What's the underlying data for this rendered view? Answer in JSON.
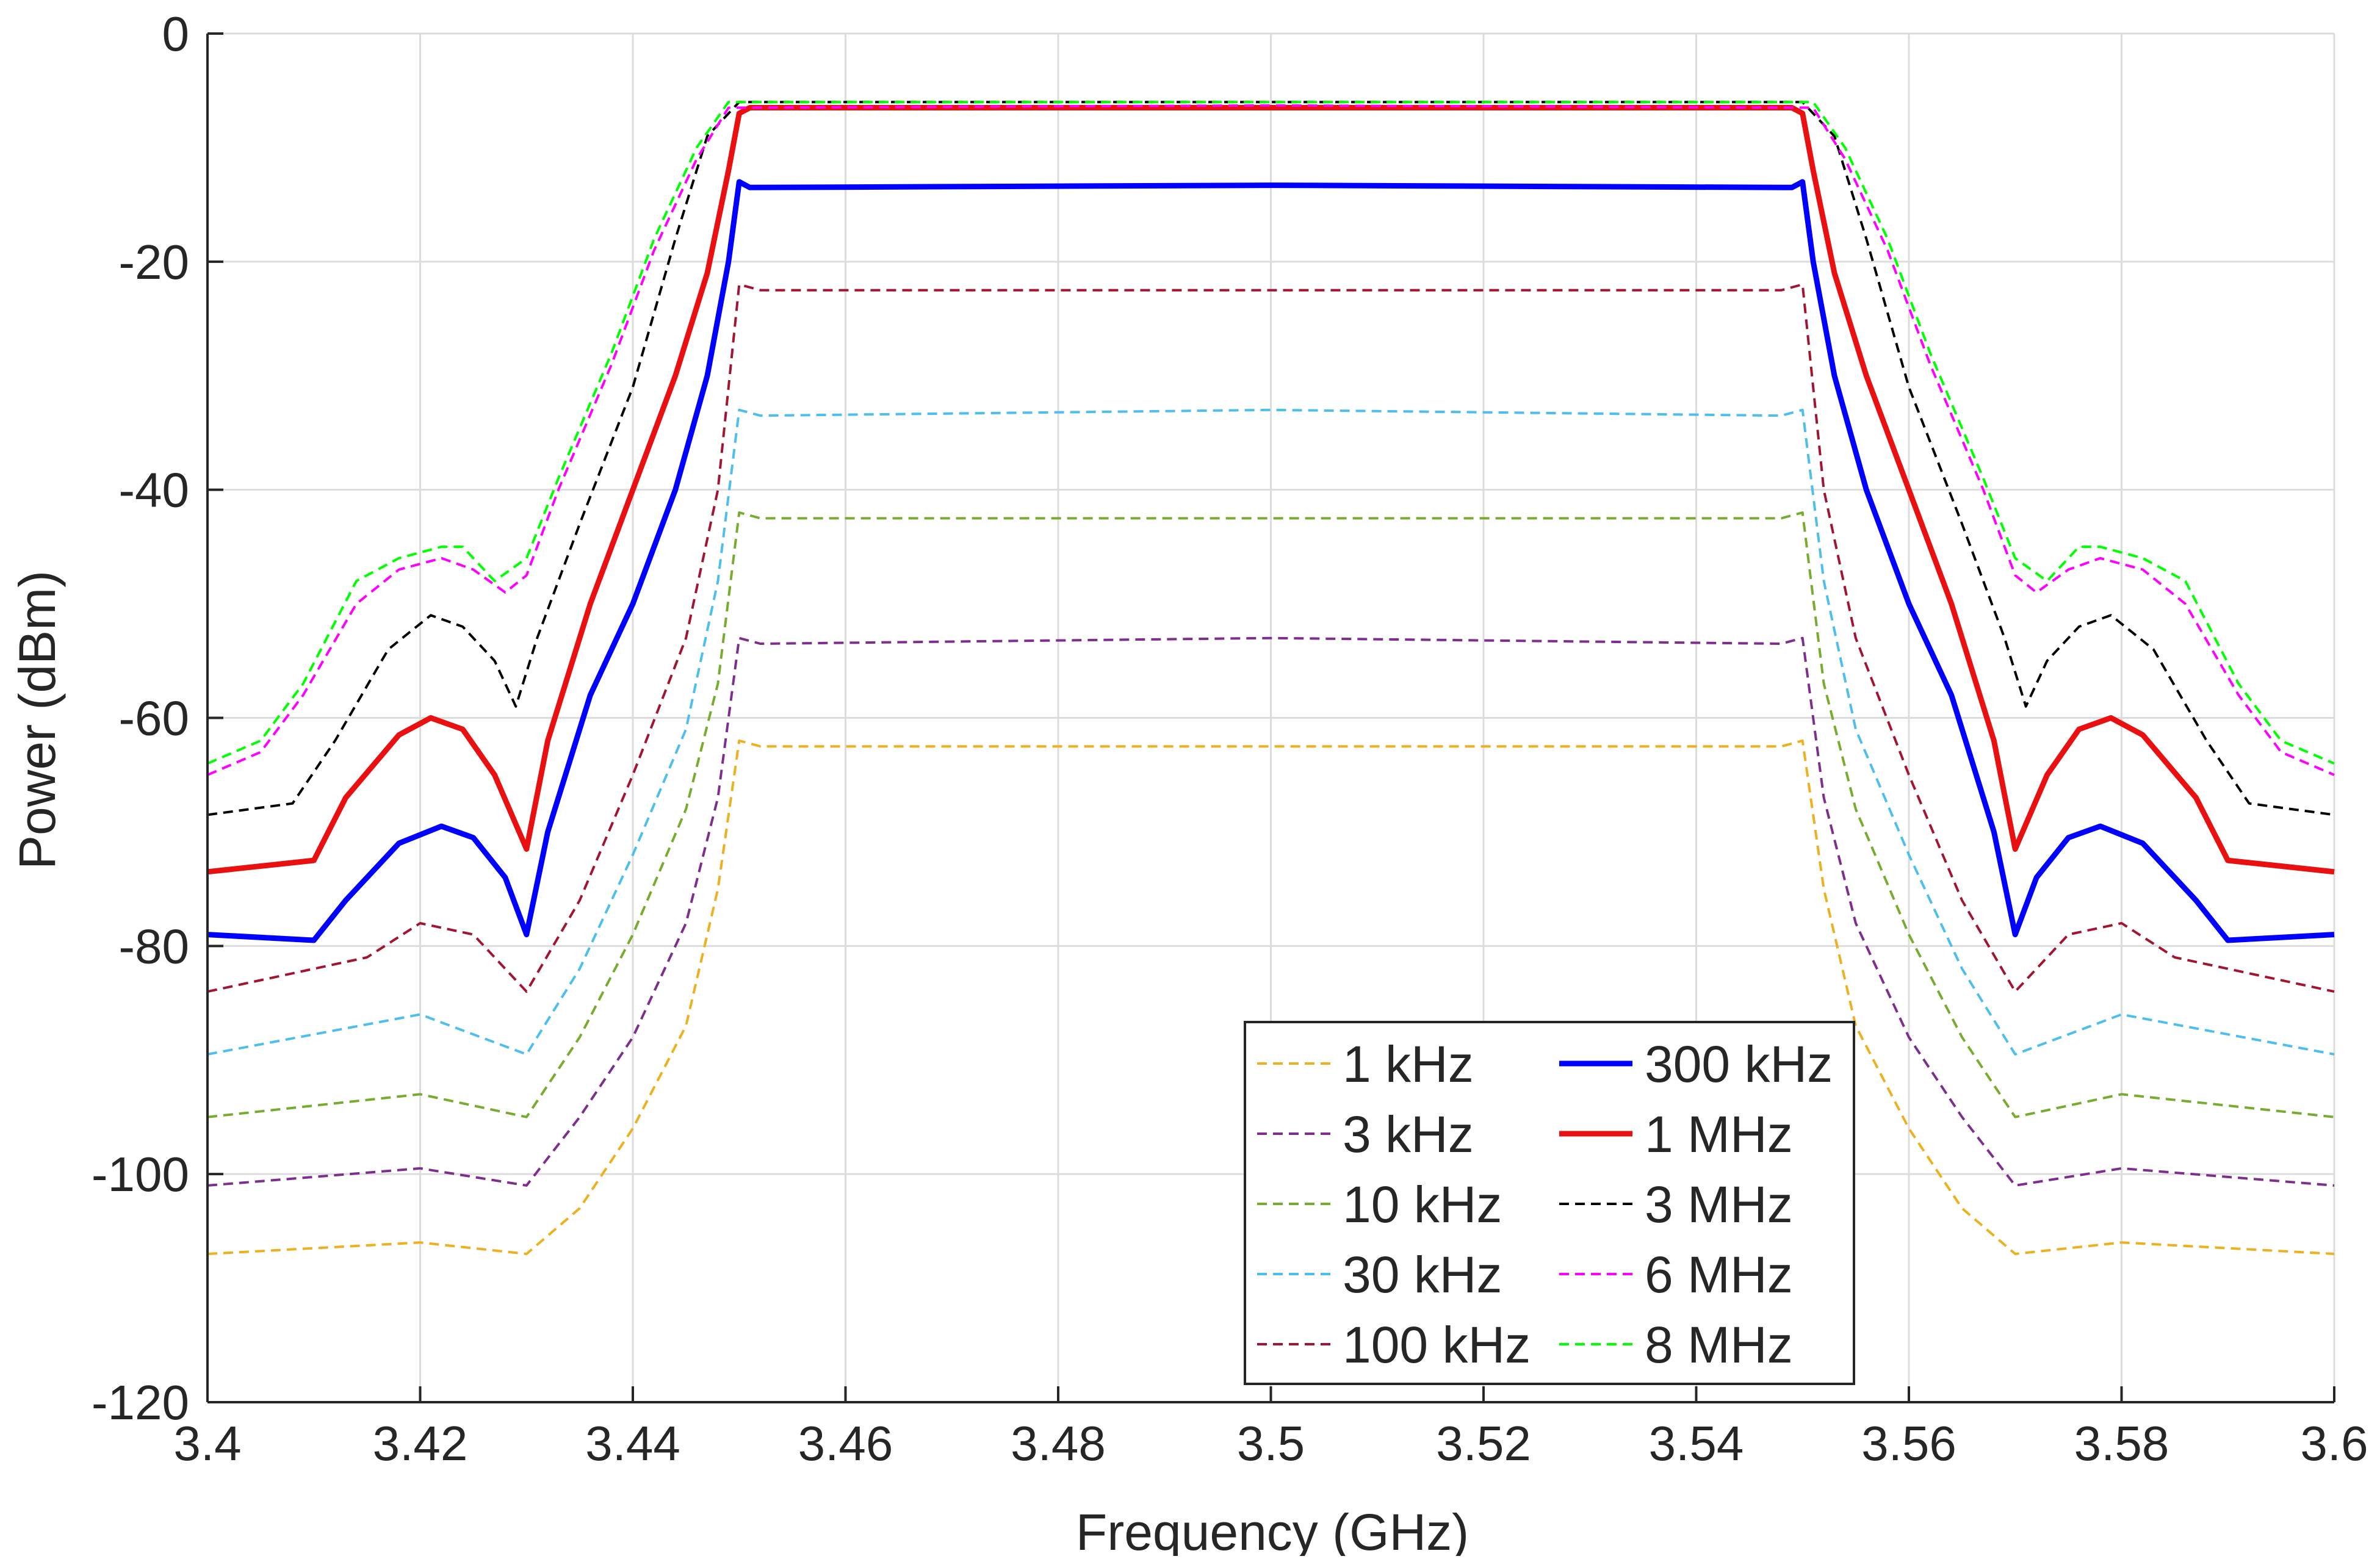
{
  "chart_data": {
    "type": "line",
    "title": "",
    "xlabel": "Frequency (GHz)",
    "ylabel": "Power (dBm)",
    "xlim": [
      3.4,
      3.6
    ],
    "ylim": [
      -120,
      0
    ],
    "grid": true,
    "legend_position": "bottom-center",
    "legend_columns": 2,
    "x_ticks": [
      3.4,
      3.42,
      3.44,
      3.46,
      3.48,
      3.5,
      3.52,
      3.54,
      3.56,
      3.58,
      3.6
    ],
    "x_tick_labels": [
      "3.4",
      "3.42",
      "3.44",
      "3.46",
      "3.48",
      "3.5",
      "3.52",
      "3.54",
      "3.56",
      "3.58",
      "3.6"
    ],
    "y_ticks": [
      0,
      -20,
      -40,
      -60,
      -80,
      -100,
      -120
    ],
    "y_tick_labels": [
      "0",
      "-20",
      "-40",
      "-60",
      "-80",
      "-100",
      "-120"
    ],
    "series": [
      {
        "name": "1 kHz",
        "color": "#EDB120",
        "style": "dashed",
        "width": "thin",
        "x": [
          3.4,
          3.42,
          3.43,
          3.435,
          3.44,
          3.445,
          3.448,
          3.45,
          3.452,
          3.5,
          3.548,
          3.55,
          3.552,
          3.555,
          3.56,
          3.565,
          3.57,
          3.58,
          3.6
        ],
        "y": [
          -107,
          -106,
          -107,
          -103,
          -96,
          -87,
          -75,
          -62,
          -62.5,
          -62.5,
          -62.5,
          -62,
          -75,
          -87,
          -96,
          -103,
          -107,
          -106,
          -107
        ]
      },
      {
        "name": "3 kHz",
        "color": "#7E2F8E",
        "style": "dashed",
        "width": "thin",
        "x": [
          3.4,
          3.42,
          3.43,
          3.435,
          3.44,
          3.445,
          3.448,
          3.45,
          3.452,
          3.5,
          3.548,
          3.55,
          3.552,
          3.555,
          3.56,
          3.565,
          3.57,
          3.58,
          3.6
        ],
        "y": [
          -101,
          -99.5,
          -101,
          -95,
          -88,
          -78,
          -67,
          -53,
          -53.5,
          -53,
          -53.5,
          -53,
          -67,
          -78,
          -88,
          -95,
          -101,
          -99.5,
          -101
        ]
      },
      {
        "name": "10 kHz",
        "color": "#77AC30",
        "style": "dashed",
        "width": "thin",
        "x": [
          3.4,
          3.42,
          3.43,
          3.435,
          3.44,
          3.445,
          3.448,
          3.45,
          3.452,
          3.5,
          3.548,
          3.55,
          3.552,
          3.555,
          3.56,
          3.565,
          3.57,
          3.58,
          3.6
        ],
        "y": [
          -95,
          -93,
          -95,
          -88,
          -79,
          -68,
          -57,
          -42,
          -42.5,
          -42.5,
          -42.5,
          -42,
          -57,
          -68,
          -79,
          -88,
          -95,
          -93,
          -95
        ]
      },
      {
        "name": "30 kHz",
        "color": "#4DBEEE",
        "style": "dashed",
        "width": "thin",
        "x": [
          3.4,
          3.42,
          3.43,
          3.435,
          3.44,
          3.445,
          3.448,
          3.45,
          3.452,
          3.5,
          3.548,
          3.55,
          3.552,
          3.555,
          3.56,
          3.565,
          3.57,
          3.58,
          3.6
        ],
        "y": [
          -89.5,
          -86,
          -89.5,
          -82,
          -72,
          -61,
          -48,
          -33,
          -33.5,
          -33,
          -33.5,
          -33,
          -48,
          -61,
          -72,
          -82,
          -89.5,
          -86,
          -89.5
        ]
      },
      {
        "name": "100 kHz",
        "color": "#A2142F",
        "style": "dashed",
        "width": "thin",
        "x": [
          3.4,
          3.415,
          3.42,
          3.425,
          3.43,
          3.435,
          3.44,
          3.445,
          3.448,
          3.45,
          3.452,
          3.5,
          3.548,
          3.55,
          3.552,
          3.555,
          3.56,
          3.565,
          3.57,
          3.575,
          3.58,
          3.585,
          3.6
        ],
        "y": [
          -84,
          -81,
          -78,
          -79,
          -84,
          -76,
          -65,
          -53,
          -40,
          -22,
          -22.5,
          -22.5,
          -22.5,
          -22,
          -40,
          -53,
          -65,
          -76,
          -84,
          -79,
          -78,
          -81,
          -84
        ]
      },
      {
        "name": "300 kHz",
        "color": "#0000FF",
        "style": "solid",
        "width": "thick",
        "x": [
          3.4,
          3.41,
          3.413,
          3.418,
          3.422,
          3.425,
          3.428,
          3.43,
          3.432,
          3.436,
          3.44,
          3.444,
          3.447,
          3.449,
          3.45,
          3.451,
          3.5,
          3.549,
          3.55,
          3.551,
          3.553,
          3.556,
          3.56,
          3.564,
          3.568,
          3.57,
          3.572,
          3.575,
          3.578,
          3.582,
          3.587,
          3.59,
          3.6
        ],
        "y": [
          -79,
          -79.5,
          -76,
          -71,
          -69.5,
          -70.5,
          -74,
          -79,
          -70,
          -58,
          -50,
          -40,
          -30,
          -20,
          -13,
          -13.5,
          -13.3,
          -13.5,
          -13,
          -20,
          -30,
          -40,
          -50,
          -58,
          -70,
          -79,
          -74,
          -70.5,
          -69.5,
          -71,
          -76,
          -79.5,
          -79
        ]
      },
      {
        "name": "1 MHz",
        "color": "#E81010",
        "style": "solid",
        "width": "thick",
        "x": [
          3.4,
          3.41,
          3.413,
          3.418,
          3.421,
          3.424,
          3.427,
          3.43,
          3.432,
          3.436,
          3.44,
          3.444,
          3.447,
          3.449,
          3.45,
          3.451,
          3.5,
          3.549,
          3.55,
          3.551,
          3.553,
          3.556,
          3.56,
          3.564,
          3.568,
          3.57,
          3.573,
          3.576,
          3.579,
          3.582,
          3.587,
          3.59,
          3.6
        ],
        "y": [
          -73.5,
          -72.5,
          -67,
          -61.5,
          -60,
          -61,
          -65,
          -71.5,
          -62,
          -50,
          -40,
          -30,
          -21,
          -12,
          -7,
          -6.5,
          -6.5,
          -6.5,
          -7,
          -12,
          -21,
          -30,
          -40,
          -50,
          -62,
          -71.5,
          -65,
          -61,
          -60,
          -61.5,
          -67,
          -72.5,
          -73.5
        ]
      },
      {
        "name": "3 MHz",
        "color": "#000000",
        "style": "dashed",
        "width": "thin",
        "x": [
          3.4,
          3.408,
          3.412,
          3.417,
          3.421,
          3.424,
          3.427,
          3.429,
          3.431,
          3.435,
          3.44,
          3.444,
          3.447,
          3.45,
          3.5,
          3.55,
          3.553,
          3.556,
          3.56,
          3.565,
          3.569,
          3.571,
          3.573,
          3.576,
          3.579,
          3.583,
          3.588,
          3.592,
          3.6
        ],
        "y": [
          -68.5,
          -67.5,
          -62,
          -54,
          -51,
          -52,
          -55,
          -59,
          -53,
          -43,
          -31,
          -18,
          -9,
          -6,
          -6,
          -6,
          -9,
          -18,
          -31,
          -43,
          -53,
          -59,
          -55,
          -52,
          -51,
          -54,
          -62,
          -67.5,
          -68.5
        ]
      },
      {
        "name": "6 MHz",
        "color": "#FF00FF",
        "style": "dashed",
        "width": "thin",
        "x": [
          3.4,
          3.405,
          3.409,
          3.414,
          3.418,
          3.422,
          3.425,
          3.428,
          3.43,
          3.433,
          3.438,
          3.442,
          3.446,
          3.449,
          3.5,
          3.551,
          3.554,
          3.558,
          3.562,
          3.567,
          3.57,
          3.572,
          3.575,
          3.578,
          3.582,
          3.586,
          3.591,
          3.595,
          3.6
        ],
        "y": [
          -65,
          -63,
          -58,
          -50,
          -47,
          -46,
          -47,
          -49,
          -47.5,
          -40,
          -29,
          -19,
          -11,
          -6.5,
          -6.3,
          -6.5,
          -11,
          -19,
          -29,
          -40,
          -47.5,
          -49,
          -47,
          -46,
          -47,
          -50,
          -58,
          -63,
          -65
        ]
      },
      {
        "name": "8 MHz",
        "color": "#00FF00",
        "style": "dashed",
        "width": "thin",
        "x": [
          3.4,
          3.405,
          3.409,
          3.414,
          3.418,
          3.422,
          3.424,
          3.427,
          3.43,
          3.433,
          3.438,
          3.442,
          3.446,
          3.449,
          3.5,
          3.551,
          3.554,
          3.558,
          3.562,
          3.567,
          3.57,
          3.573,
          3.576,
          3.578,
          3.582,
          3.586,
          3.591,
          3.595,
          3.6
        ],
        "y": [
          -64,
          -62,
          -57,
          -48,
          -46,
          -45,
          -45,
          -48,
          -46,
          -39,
          -28,
          -18,
          -10,
          -6,
          -6,
          -6,
          -10,
          -18,
          -28,
          -39,
          -46,
          -48,
          -45,
          -45,
          -46,
          -48,
          -57,
          -62,
          -64
        ]
      }
    ]
  }
}
